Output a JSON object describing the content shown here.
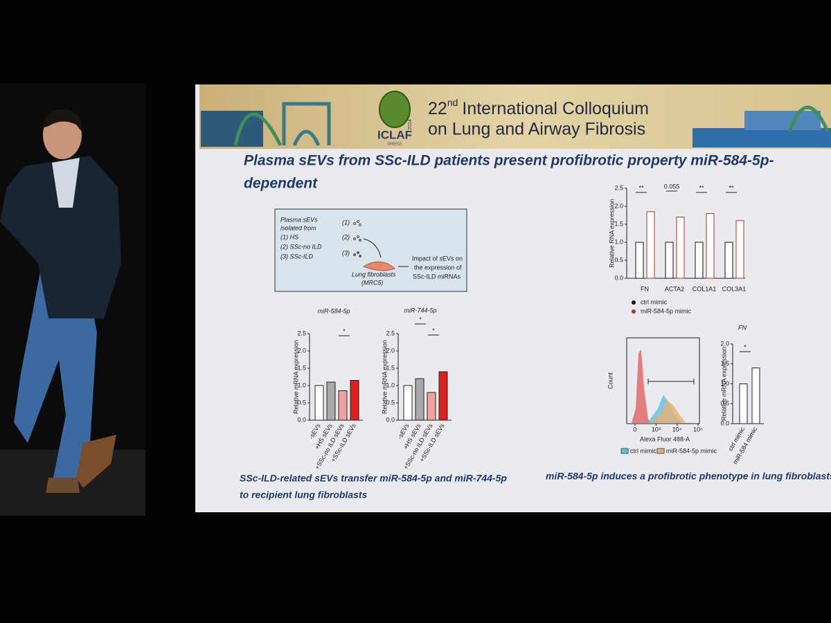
{
  "banner": {
    "number": "22",
    "ordinal": "nd",
    "line1": "International Colloquium",
    "line2": "on Lung and Airway Fibrosis",
    "logo": "ICLAF",
    "logo_year": "2024",
    "logo_country": "GREECE"
  },
  "slide": {
    "title_line1": "Plasma sEVs from SSc-ILD patients present profibrotic property miR-584-5p-",
    "title_line2": "dependent",
    "schematic": {
      "source_lines": [
        "Plasma sEVs",
        "isolated from",
        "(1) HS",
        "(2) SSc-no ILD",
        "(3) SSc-ILD"
      ],
      "markers": [
        "(1)",
        "(2)",
        "(3)"
      ],
      "cell_lines": [
        "Lung fibroblasts",
        "(MRC5)"
      ],
      "outcome_lines": [
        "Impact of sEVs on",
        "the expression of",
        "SSc-ILD miRNAs"
      ]
    },
    "caption_left": [
      "SSc-ILD-related sEVs transfer miR-584-5p and miR-744-5p",
      "to recipient lung fibroblasts"
    ],
    "caption_right": "miR-584-5p induces a profibrotic phenotype in lung fibroblasts"
  },
  "chart_data": [
    {
      "type": "bar",
      "title": "miR-584-5p",
      "y_label": "Relative mRNA expression",
      "categories": [
        "-sEVs",
        "+HS sEVs",
        "+SSc-no ILD sEVs",
        "+SSc-ILD sEVs"
      ],
      "values": [
        1.0,
        1.1,
        0.85,
        1.15
      ],
      "colors": [
        "#ffffff",
        "#a9a9a9",
        "#f2a0a0",
        "#e02020"
      ],
      "ylim": [
        0,
        2.5
      ],
      "yticks": [
        {
          "value": 0,
          "label": "0.0"
        },
        0.5,
        {
          "value": 1,
          "label": "1.0"
        },
        1.5,
        {
          "value": 2,
          "label": "2.0"
        },
        2.5
      ],
      "annotations": [
        "*"
      ]
    },
    {
      "type": "bar",
      "title": "miR-744-5p",
      "y_label": "Relative mRNA expression",
      "categories": [
        "-sEVs",
        "+HS sEVs",
        "+SSc-no ILD sEVs",
        "+SSc-ILD sEVs"
      ],
      "values": [
        1.0,
        1.2,
        0.8,
        1.4
      ],
      "colors": [
        "#ffffff",
        "#a9a9a9",
        "#f2a0a0",
        "#e02020"
      ],
      "ylim": [
        0,
        2.5
      ],
      "yticks": [
        {
          "value": 0,
          "label": "0.0"
        },
        0.5,
        {
          "value": 1,
          "label": "1.0"
        },
        1.5,
        {
          "value": 2,
          "label": "2.0"
        },
        2.5
      ],
      "annotations": [
        "*",
        "*"
      ]
    },
    {
      "type": "grouped-bar",
      "y_label": "Relative RNA expression",
      "categories": [
        "FN",
        "ACTA2",
        "COL1A1",
        "COL3A1"
      ],
      "series": [
        {
          "name": "ctrl mimic",
          "color": "#111111",
          "values": [
            1.0,
            1.0,
            1.0,
            1.0
          ]
        },
        {
          "name": "miR-584-5p mimic",
          "color": "#a0392f",
          "values": [
            1.85,
            1.7,
            1.8,
            1.6
          ]
        }
      ],
      "ylim": [
        0,
        2.5
      ],
      "yticks": [
        {
          "value": 0,
          "label": "0.0"
        },
        0.5,
        {
          "value": 1,
          "label": "1.0"
        },
        1.5,
        {
          "value": 2,
          "label": "2.0"
        },
        2.5
      ],
      "annotations": [
        "**",
        "0.055",
        "**",
        "**"
      ]
    },
    {
      "type": "bar",
      "title": "FN",
      "y_label": "Relative mRNA expression",
      "categories": [
        "ctrl mimic",
        "miR-584 mimic"
      ],
      "values": [
        1.0,
        1.4
      ],
      "colors": [
        "#ffffff",
        "#ffffff"
      ],
      "ylim": [
        0,
        2.0
      ],
      "yticks": [
        {
          "value": 0,
          "label": "0.0"
        },
        0.5,
        {
          "value": 1,
          "label": "1.0"
        },
        1.5,
        {
          "value": 2,
          "label": "2.0"
        }
      ],
      "annotations": [
        "*"
      ]
    },
    {
      "type": "flow",
      "x_label": "Alexa Fluor 488-A",
      "y_label": "Count",
      "xticks": [
        0,
        {
          "value": 1000,
          "label": "10³"
        },
        {
          "value": 10000,
          "label": "10⁴"
        },
        {
          "value": 100000,
          "label": "10⁵"
        }
      ],
      "series": [
        {
          "name": "ctrl mimic",
          "color": "#5bc0e8"
        },
        {
          "name": "miR-584-5p mimic",
          "color": "#e8b070"
        }
      ]
    }
  ]
}
